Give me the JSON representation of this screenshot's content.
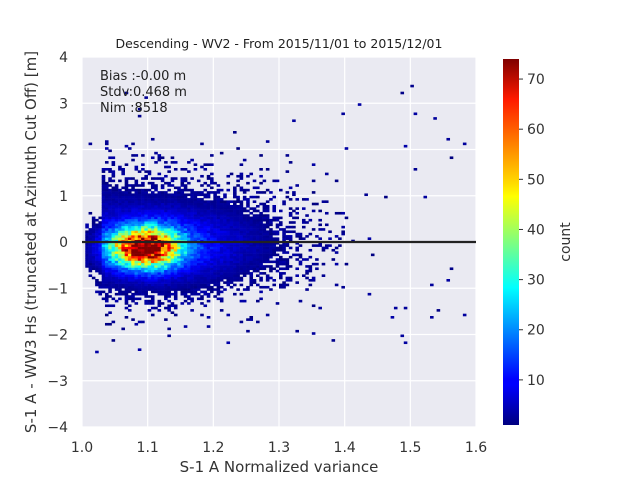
{
  "chart_data": {
    "type": "heatmap",
    "title": "Descending - WV2 - From 2015/11/01 to 2015/12/01",
    "xlabel": "S-1 A Normalized variance",
    "ylabel": "S-1 A - WW3 Hs (truncated at Azimuth Cut Off) [m]",
    "xlim": [
      1.0,
      1.6
    ],
    "ylim": [
      -4,
      4
    ],
    "xticks": [
      "1.0",
      "1.1",
      "1.2",
      "1.3",
      "1.4",
      "1.5",
      "1.6"
    ],
    "yticks": [
      "−4",
      "−3",
      "−2",
      "−1",
      "0",
      "1",
      "2",
      "3",
      "4"
    ],
    "grid": true,
    "background": "#eaeaf2",
    "colormap": "jet",
    "zero_line": {
      "y": 0,
      "color": "#222222"
    },
    "stats": [
      "Bias :-0.00 m",
      "Stdv:0.468 m",
      "Nim :8518"
    ],
    "colorbar": {
      "label": "count",
      "range": [
        1,
        74
      ],
      "ticks": [
        "10",
        "20",
        "30",
        "40",
        "50",
        "60",
        "70"
      ]
    },
    "density_model": {
      "main_peak": {
        "x": 1.095,
        "y": -0.12,
        "peak_count": 72
      },
      "spread": "bulk of samples between x 1.02–1.35 and y −1.5–1.5, sparse scatter out to x 1.58 and y ±3"
    }
  }
}
